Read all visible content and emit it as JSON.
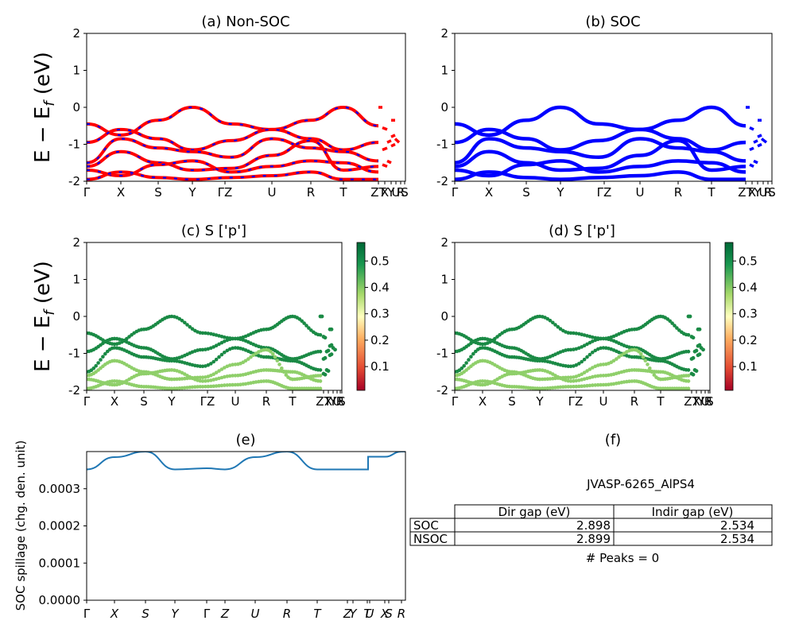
{
  "ylabel_band": "E − E",
  "ylabel_band_sub": "f",
  "ylabel_band_unit": "(eV)",
  "band_yticks": [
    2,
    1,
    0,
    -1,
    -2
  ],
  "band_kpath": [
    "Γ",
    "X",
    "S",
    "Y",
    "ΓZ",
    "U",
    "R",
    "T",
    "ZT",
    "X",
    "Y",
    "U",
    "R",
    "S"
  ],
  "colorbar_ticks": [
    0.1,
    0.2,
    0.3,
    0.4,
    0.5
  ],
  "spillage_kpath": [
    "Γ",
    "X",
    "S",
    "Y",
    "Γ",
    "Z",
    "U",
    "R",
    "T",
    "Z",
    "Y",
    "T",
    "U",
    "X",
    "S",
    "R"
  ],
  "colors": {
    "nonsoc_line": "#ff0000",
    "nonsoc_dash": "#0000ff",
    "soc_line": "#0000ff",
    "proj_dark": "#1a8a45",
    "proj_light": "#8fcf6a",
    "spillage_line": "#1f77b4"
  },
  "chart_data": [
    {
      "id": "a",
      "type": "line",
      "title": "(a) Non-SOC",
      "ylabel": "E − E_f (eV)",
      "ylim": [
        -2,
        2
      ],
      "xticklabels": [
        "Γ",
        "X",
        "S",
        "Y",
        "ΓZ",
        "U",
        "R",
        "T",
        "ZT",
        "X",
        "Y",
        "U",
        "R",
        "S"
      ],
      "note": "electronic band structure, red solid lines overlaid with blue dashes",
      "series": [
        {
          "x": [
            "Γ",
            "X",
            "S",
            "Y",
            "ΓZ",
            "U",
            "R",
            "T",
            "Z"
          ],
          "values": [
            -0.45,
            -0.75,
            -0.35,
            0.0,
            -0.45,
            -0.6,
            -0.35,
            0.0,
            -0.5
          ]
        },
        {
          "x": [
            "Γ",
            "X",
            "S",
            "Y",
            "ΓZ",
            "U",
            "R",
            "T",
            "Z"
          ],
          "values": [
            -0.95,
            -0.6,
            -0.85,
            -1.15,
            -0.9,
            -0.6,
            -0.85,
            -1.15,
            -0.95
          ]
        },
        {
          "x": [
            "Γ",
            "X",
            "S",
            "Y",
            "ΓZ",
            "U",
            "R",
            "T",
            "Z"
          ],
          "values": [
            -1.5,
            -0.85,
            -1.1,
            -1.2,
            -1.35,
            -0.85,
            -1.1,
            -1.2,
            -1.45
          ]
        },
        {
          "x": [
            "Γ",
            "X",
            "S",
            "Y",
            "ΓZ",
            "U",
            "R",
            "T",
            "Z"
          ],
          "values": [
            -1.6,
            -1.2,
            -1.5,
            -1.7,
            -1.65,
            -1.3,
            -0.9,
            -1.7,
            -1.6
          ]
        },
        {
          "x": [
            "Γ",
            "X",
            "S",
            "Y",
            "ΓZ",
            "U",
            "R",
            "T",
            "Z"
          ],
          "values": [
            -1.7,
            -1.85,
            -1.55,
            -1.45,
            -1.75,
            -1.6,
            -1.45,
            -1.5,
            -1.75
          ]
        },
        {
          "x": [
            "Γ",
            "X",
            "S",
            "Y",
            "ΓZ",
            "U",
            "R",
            "T",
            "Z"
          ],
          "values": [
            -1.95,
            -1.75,
            -1.9,
            -1.95,
            -1.9,
            -1.85,
            -1.75,
            -1.95,
            -1.95
          ]
        }
      ]
    },
    {
      "id": "b",
      "type": "line",
      "title": "(b) SOC",
      "ylim": [
        -2,
        2
      ],
      "xticklabels": [
        "Γ",
        "X",
        "S",
        "Y",
        "ΓZ",
        "U",
        "R",
        "T",
        "ZT",
        "X",
        "Y",
        "U",
        "R",
        "S"
      ],
      "note": "band structure with spin-orbit coupling, blue lines",
      "series": [
        {
          "x": [
            "Γ",
            "X",
            "S",
            "Y",
            "ΓZ",
            "U",
            "R",
            "T",
            "Z"
          ],
          "values": [
            -0.45,
            -0.75,
            -0.35,
            0.0,
            -0.45,
            -0.6,
            -0.35,
            0.0,
            -0.5
          ]
        },
        {
          "x": [
            "Γ",
            "X",
            "S",
            "Y",
            "ΓZ",
            "U",
            "R",
            "T",
            "Z"
          ],
          "values": [
            -0.95,
            -0.6,
            -0.85,
            -1.15,
            -0.9,
            -0.6,
            -0.85,
            -1.15,
            -0.95
          ]
        },
        {
          "x": [
            "Γ",
            "X",
            "S",
            "Y",
            "ΓZ",
            "U",
            "R",
            "T",
            "Z"
          ],
          "values": [
            -1.5,
            -0.85,
            -1.1,
            -1.2,
            -1.35,
            -0.85,
            -1.1,
            -1.2,
            -1.45
          ]
        },
        {
          "x": [
            "Γ",
            "X",
            "S",
            "Y",
            "ΓZ",
            "U",
            "R",
            "T",
            "Z"
          ],
          "values": [
            -1.6,
            -1.2,
            -1.5,
            -1.7,
            -1.65,
            -1.3,
            -0.9,
            -1.7,
            -1.6
          ]
        },
        {
          "x": [
            "Γ",
            "X",
            "S",
            "Y",
            "ΓZ",
            "U",
            "R",
            "T",
            "Z"
          ],
          "values": [
            -1.7,
            -1.85,
            -1.55,
            -1.45,
            -1.75,
            -1.6,
            -1.45,
            -1.5,
            -1.75
          ]
        },
        {
          "x": [
            "Γ",
            "X",
            "S",
            "Y",
            "ΓZ",
            "U",
            "R",
            "T",
            "Z"
          ],
          "values": [
            -1.95,
            -1.75,
            -1.9,
            -1.95,
            -1.9,
            -1.85,
            -1.75,
            -1.95,
            -1.95
          ]
        }
      ]
    },
    {
      "id": "c",
      "type": "scatter",
      "title": "(c)  S ['p']",
      "ylabel": "E − E_f (eV)",
      "ylim": [
        -2,
        2
      ],
      "colorbar": {
        "colormap": "RdYlGn",
        "ticks": [
          0.1,
          0.2,
          0.3,
          0.4,
          0.5
        ]
      },
      "note": "orbital-projected bands, marker color = projection weight (~0.45–0.55 mostly)"
    },
    {
      "id": "d",
      "type": "scatter",
      "title": "(d) S ['p']",
      "ylim": [
        -2,
        2
      ],
      "colorbar": {
        "colormap": "RdYlGn",
        "ticks": [
          0.1,
          0.2,
          0.3,
          0.4,
          0.5
        ]
      },
      "note": "orbital-projected bands with SOC"
    },
    {
      "id": "e",
      "type": "line",
      "title": "(e)",
      "ylabel": "SOC spillage (chg. den. unit)",
      "ylim": [
        0,
        0.0004
      ],
      "yticks": [
        0.0,
        0.0001,
        0.0002,
        0.0003
      ],
      "xticklabels": [
        "Γ",
        "X",
        "S",
        "Y",
        "Γ",
        "Z",
        "U",
        "R",
        "T",
        "Z",
        "Y",
        "T",
        "U",
        "X",
        "S",
        "R"
      ],
      "x": [
        "Γ",
        "X",
        "S",
        "Y",
        "Γ",
        "Z",
        "U",
        "R",
        "T",
        "Z",
        "T",
        "U",
        "S",
        "R"
      ],
      "values": [
        0.000352,
        0.000385,
        0.0004,
        0.000352,
        0.000355,
        0.000352,
        0.000385,
        0.0004,
        0.000352,
        0.000352,
        0.000352,
        0.000386,
        0.0004,
        0.0004
      ]
    },
    {
      "id": "f",
      "type": "table",
      "title": "(f)",
      "caption": "JVASP-6265_AlPS4",
      "columns": [
        "",
        "Dir gap (eV)",
        "Indir gap (eV)"
      ],
      "rows": [
        [
          "SOC",
          "2.898",
          "2.534"
        ],
        [
          "NSOC",
          "2.899",
          "2.534"
        ]
      ],
      "footer": "# Peaks = 0"
    }
  ]
}
